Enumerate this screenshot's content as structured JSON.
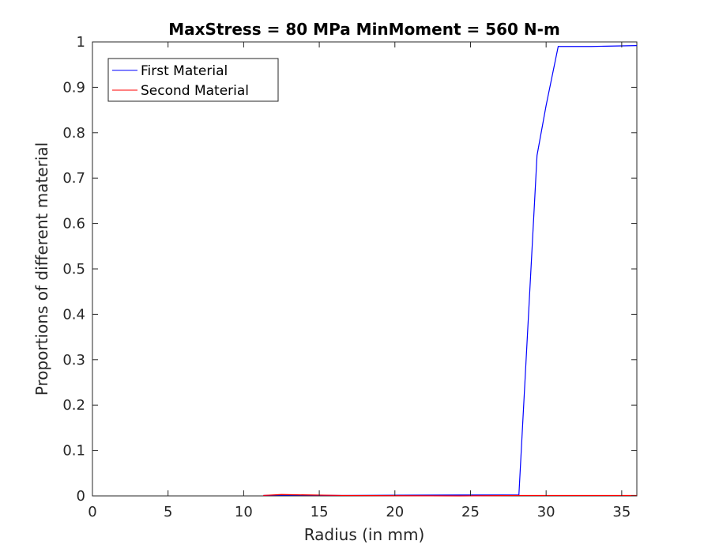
{
  "chart_data": {
    "type": "line",
    "title": "MaxStress = 80 MPa MinMoment = 560 N-m",
    "xlabel": "Radius (in mm)",
    "ylabel": "Proportions of different material",
    "xlim": [
      0,
      36
    ],
    "ylim": [
      0,
      1
    ],
    "xticks": [
      0,
      5,
      10,
      15,
      20,
      25,
      30,
      35
    ],
    "yticks": [
      0,
      0.1,
      0.2,
      0.3,
      0.4,
      0.5,
      0.6,
      0.7,
      0.8,
      0.9,
      1
    ],
    "ytick_labels": [
      "0",
      "0.1",
      "0.2",
      "0.3",
      "0.4",
      "0.5",
      "0.6",
      "0.7",
      "0.8",
      "0.9",
      "1"
    ],
    "grid": false,
    "legend_position": "top-left",
    "series": [
      {
        "name": "First Material",
        "color": "#0000ff",
        "x": [
          11.3,
          12.5,
          16.5,
          24.3,
          28.2,
          29.4,
          30.0,
          30.8,
          33.0,
          36.0
        ],
        "y": [
          0.001,
          0.002,
          0.001,
          0.002,
          0.002,
          0.75,
          0.86,
          0.99,
          0.99,
          0.992
        ]
      },
      {
        "name": "Second Material",
        "color": "#ff0000",
        "x": [
          11.3,
          12.5,
          16.5,
          24.3,
          28.2,
          30.0,
          33.0,
          36.0
        ],
        "y": [
          0.001,
          0.003,
          0.001,
          0.0,
          0.001,
          0.001,
          0.001,
          0.001
        ]
      }
    ]
  }
}
